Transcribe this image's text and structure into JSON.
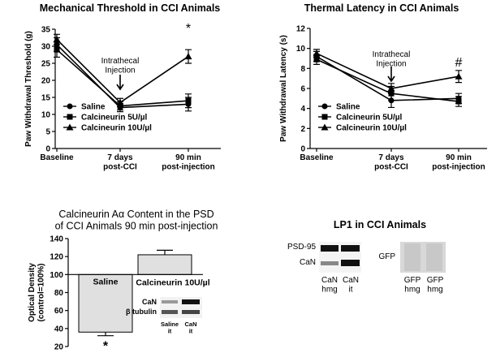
{
  "chart_data": [
    {
      "type": "line",
      "title": "Mechanical Threshold in CCI Animals",
      "y_label": "Paw Withdrawal Threshold (g)",
      "categories": [
        "Baseline",
        "7 days\npost-CCI",
        "90 min\npost-injection"
      ],
      "ylim": [
        0,
        35
      ],
      "yticks": [
        0,
        5,
        10,
        15,
        20,
        25,
        30,
        35
      ],
      "series": [
        {
          "name": "Saline",
          "marker": "circle",
          "color": "#000",
          "values": [
            30.5,
            12,
            13
          ],
          "errors": [
            2,
            1.2,
            2
          ]
        },
        {
          "name": "Calcineurin 5U/µl",
          "marker": "square",
          "color": "#000",
          "values": [
            29,
            12.5,
            14
          ],
          "errors": [
            2.2,
            1.2,
            2
          ]
        },
        {
          "name": "Calcineurin 10U/µl",
          "marker": "triangle",
          "color": "#000",
          "values": [
            32,
            13.5,
            27
          ],
          "errors": [
            1.5,
            1.2,
            2
          ]
        }
      ],
      "annotations": [
        "Intrathecal\nInjection",
        "*"
      ]
    },
    {
      "type": "line",
      "title": "Thermal Latency in CCI Animals",
      "y_label": "Paw Withdrawal Latency (s)",
      "categories": [
        "Baseline",
        "7 days\npost-CCI",
        "90 min\npost-injection"
      ],
      "ylim": [
        0,
        12
      ],
      "yticks": [
        0,
        2,
        4,
        6,
        8,
        10,
        12
      ],
      "series": [
        {
          "name": "Saline",
          "marker": "circle",
          "color": "#000",
          "values": [
            9.2,
            4.8,
            5.0
          ],
          "errors": [
            0.5,
            0.7,
            0.5
          ]
        },
        {
          "name": "Calcineurin 5U/µl",
          "marker": "square",
          "color": "#000",
          "values": [
            8.9,
            5.5,
            4.7
          ],
          "errors": [
            0.5,
            0.7,
            0.5
          ]
        },
        {
          "name": "Calcineurin 10U/µl",
          "marker": "triangle",
          "color": "#000",
          "values": [
            9.5,
            6.0,
            7.2
          ],
          "errors": [
            0.4,
            0.5,
            0.6
          ]
        }
      ],
      "annotations": [
        "Intrathecal\nInjection",
        "#"
      ]
    },
    {
      "type": "bar",
      "title": "Calcineurin Aα Content in the PSD\nof CCI Animals 90 min post-injection",
      "y_label": "Optical Density\n(control=100%)",
      "categories": [
        "Saline",
        "Calcineurin 10U/µl"
      ],
      "values": [
        36,
        122
      ],
      "errors": [
        4,
        5
      ],
      "color": "#e0e0e0",
      "baseline": 100,
      "ylim": [
        20,
        140
      ],
      "yticks": [
        20,
        40,
        60,
        80,
        100,
        120,
        140
      ],
      "annotations": [
        "*"
      ],
      "inset": {
        "rows": [
          "CaN",
          "β tubulin"
        ],
        "lanes": [
          "Saline\nit",
          "CaN\nit"
        ]
      }
    }
  ],
  "blot": {
    "title": "LP1 in CCI Animals",
    "rows": [
      "PSD-95",
      "CaN"
    ],
    "gfp": "GFP",
    "lanes": [
      "CaN\nhmg",
      "CaN\nit",
      "GFP\nhmg",
      "GFP\nhmg"
    ]
  }
}
